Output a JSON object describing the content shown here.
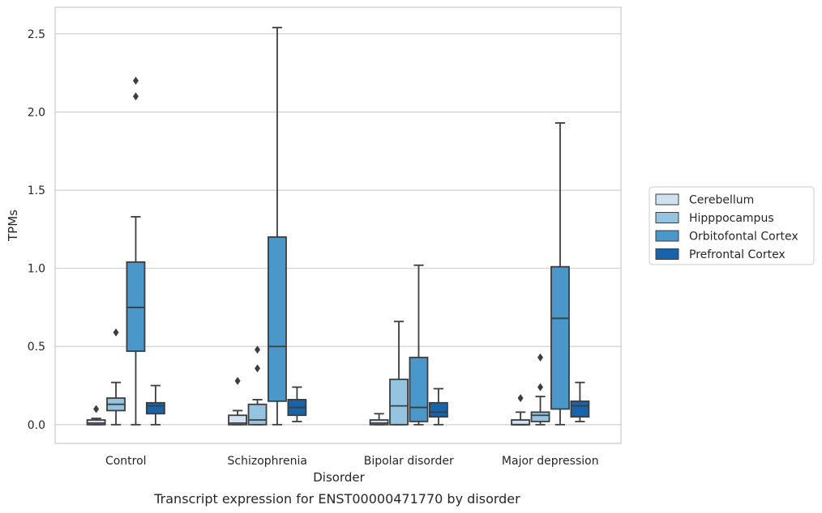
{
  "chart_data": {
    "type": "box",
    "caption": "Transcript expression for ENST00000471770 by disorder",
    "xlabel": "Disorder",
    "ylabel": "TPMs",
    "ylim": [
      -0.12,
      2.67
    ],
    "yticks": [
      0.0,
      0.5,
      1.0,
      1.5,
      2.0,
      2.5
    ],
    "ytick_labels": [
      "0.0",
      "0.5",
      "1.0",
      "1.5",
      "2.0",
      "2.5"
    ],
    "grid": true,
    "legend_position": "right",
    "categories": [
      "Control",
      "Schizophrenia",
      "Bipolar disorder",
      "Major depression"
    ],
    "series": [
      {
        "name": "Cerebellum",
        "color": "#d0e1f2",
        "boxes": [
          {
            "whislo": 0.0,
            "q1": 0.0,
            "med": 0.01,
            "q3": 0.03,
            "whishi": 0.04,
            "fliers": [
              0.1
            ]
          },
          {
            "whislo": 0.0,
            "q1": 0.0,
            "med": 0.01,
            "q3": 0.06,
            "whishi": 0.09,
            "fliers": [
              0.28
            ]
          },
          {
            "whislo": 0.0,
            "q1": 0.0,
            "med": 0.01,
            "q3": 0.03,
            "whishi": 0.07,
            "fliers": []
          },
          {
            "whislo": 0.0,
            "q1": 0.0,
            "med": 0.0,
            "q3": 0.03,
            "whishi": 0.08,
            "fliers": [
              0.17
            ]
          }
        ]
      },
      {
        "name": "Hipppocampus",
        "color": "#94c4df",
        "boxes": [
          {
            "whislo": 0.0,
            "q1": 0.09,
            "med": 0.13,
            "q3": 0.17,
            "whishi": 0.27,
            "fliers": [
              0.59
            ]
          },
          {
            "whislo": 0.0,
            "q1": 0.0,
            "med": 0.03,
            "q3": 0.13,
            "whishi": 0.16,
            "fliers": [
              0.36,
              0.48
            ]
          },
          {
            "whislo": 0.0,
            "q1": 0.0,
            "med": 0.12,
            "q3": 0.29,
            "whishi": 0.66,
            "fliers": []
          },
          {
            "whislo": 0.0,
            "q1": 0.02,
            "med": 0.06,
            "q3": 0.08,
            "whishi": 0.18,
            "fliers": [
              0.24,
              0.43
            ]
          }
        ]
      },
      {
        "name": "Orbitofontal Cortex",
        "color": "#4a98c9",
        "boxes": [
          {
            "whislo": 0.0,
            "q1": 0.47,
            "med": 0.75,
            "q3": 1.04,
            "whishi": 1.33,
            "fliers": [
              2.1,
              2.2
            ]
          },
          {
            "whislo": 0.0,
            "q1": 0.15,
            "med": 0.5,
            "q3": 1.2,
            "whishi": 2.54,
            "fliers": []
          },
          {
            "whislo": 0.0,
            "q1": 0.02,
            "med": 0.11,
            "q3": 0.43,
            "whishi": 1.02,
            "fliers": []
          },
          {
            "whislo": 0.0,
            "q1": 0.1,
            "med": 0.68,
            "q3": 1.01,
            "whishi": 1.93,
            "fliers": []
          }
        ]
      },
      {
        "name": "Prefrontal Cortex",
        "color": "#1764ab",
        "boxes": [
          {
            "whislo": 0.0,
            "q1": 0.07,
            "med": 0.12,
            "q3": 0.14,
            "whishi": 0.25,
            "fliers": []
          },
          {
            "whislo": 0.02,
            "q1": 0.06,
            "med": 0.11,
            "q3": 0.16,
            "whishi": 0.24,
            "fliers": []
          },
          {
            "whislo": 0.0,
            "q1": 0.05,
            "med": 0.08,
            "q3": 0.14,
            "whishi": 0.23,
            "fliers": []
          },
          {
            "whislo": 0.02,
            "q1": 0.05,
            "med": 0.12,
            "q3": 0.15,
            "whishi": 0.27,
            "fliers": []
          }
        ]
      }
    ]
  }
}
